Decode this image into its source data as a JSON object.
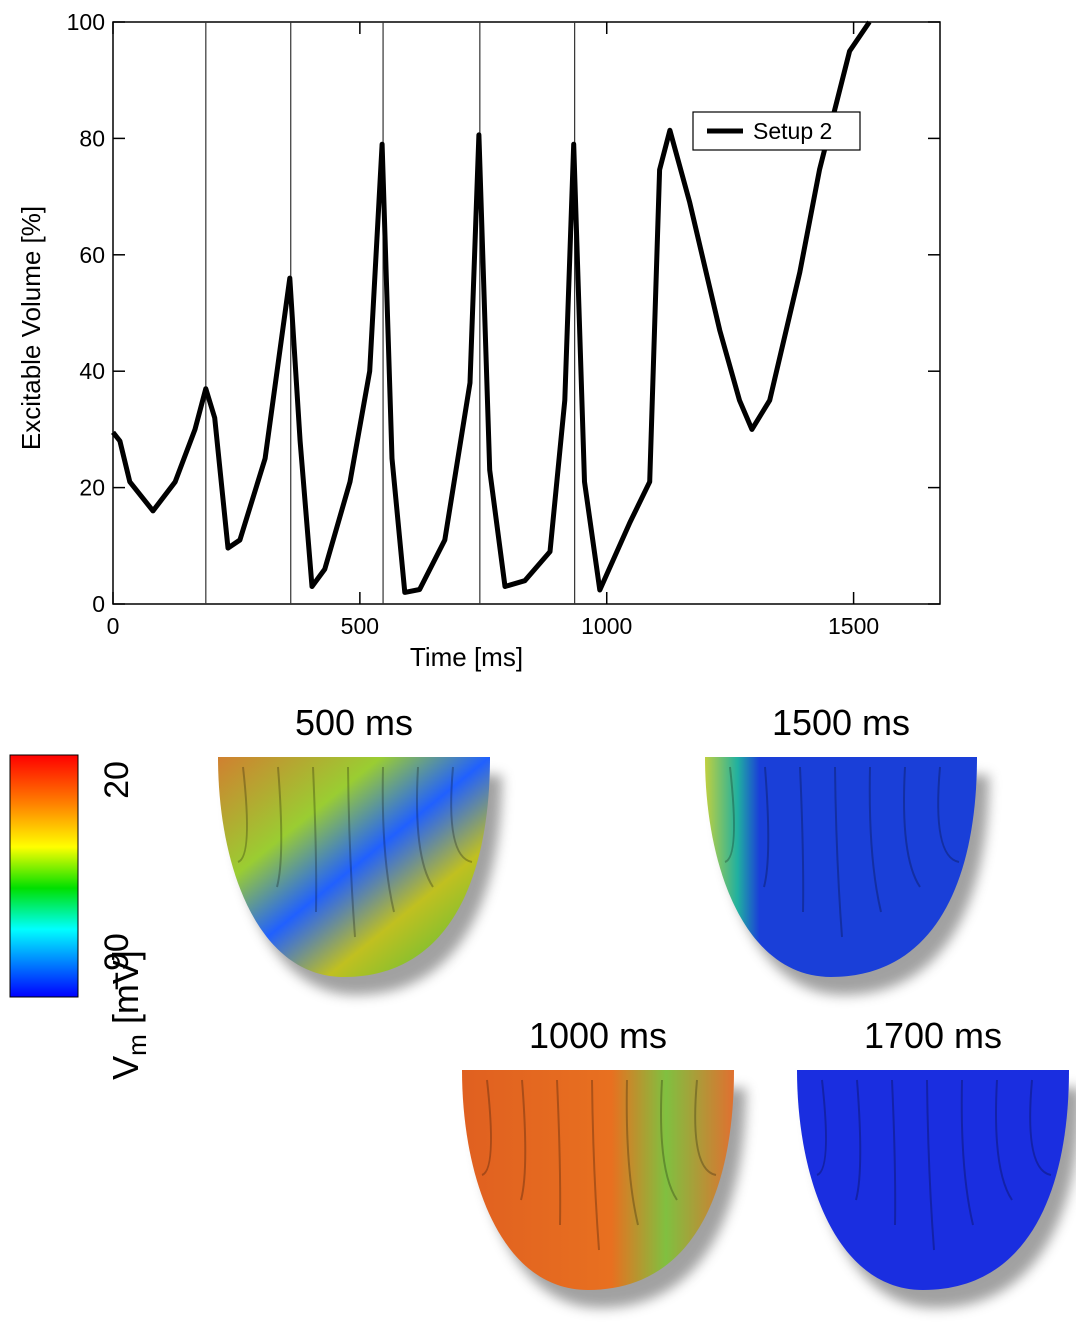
{
  "chart_data": {
    "type": "line",
    "xlabel": "Time [ms]",
    "ylabel": "Excitable Volume [%]",
    "xlim": [
      0,
      1675
    ],
    "ylim": [
      0,
      100
    ],
    "xticks": [
      0,
      500,
      1000,
      1500
    ],
    "yticks": [
      0,
      20,
      40,
      60,
      80,
      100
    ],
    "grid": false,
    "legend": "upper right",
    "vlines": [
      188,
      360,
      547,
      743,
      935
    ],
    "series": [
      {
        "name": "Setup 2",
        "color": "#000000",
        "x": [
          0,
          14,
          34,
          81,
          126,
          166,
          188,
          206,
          233,
          257,
          308,
          358,
          379,
          403,
          429,
          480,
          520,
          545,
          565,
          591,
          621,
          672,
          723,
          741,
          763,
          794,
          834,
          885,
          915,
          933,
          955,
          986,
          1047,
          1087,
          1107,
          1128,
          1168,
          1229,
          1269,
          1294,
          1330,
          1391,
          1431,
          1492,
          1532
        ],
        "values": [
          29.5,
          28,
          21,
          16,
          21,
          30,
          37,
          32,
          9.6,
          11,
          25,
          56,
          28,
          3,
          6,
          21,
          40,
          79,
          25,
          2,
          2.5,
          11,
          38,
          80.6,
          23,
          3,
          4,
          9,
          35,
          79,
          21,
          2.4,
          14,
          21,
          74.6,
          81.4,
          69,
          47,
          35,
          30,
          35,
          57,
          74.6,
          95,
          100
        ]
      }
    ]
  },
  "panels": [
    {
      "label": "500 ms"
    },
    {
      "label": "1500 ms"
    },
    {
      "label": "1000 ms"
    },
    {
      "label": "1700 ms"
    }
  ],
  "colorbar": {
    "range": [
      -90,
      20
    ],
    "ticks": [
      20,
      {
        "value": -90,
        "label": "−90"
      }
    ],
    "label": "V",
    "label_sub": "m",
    "label_unit": " [mV]"
  }
}
